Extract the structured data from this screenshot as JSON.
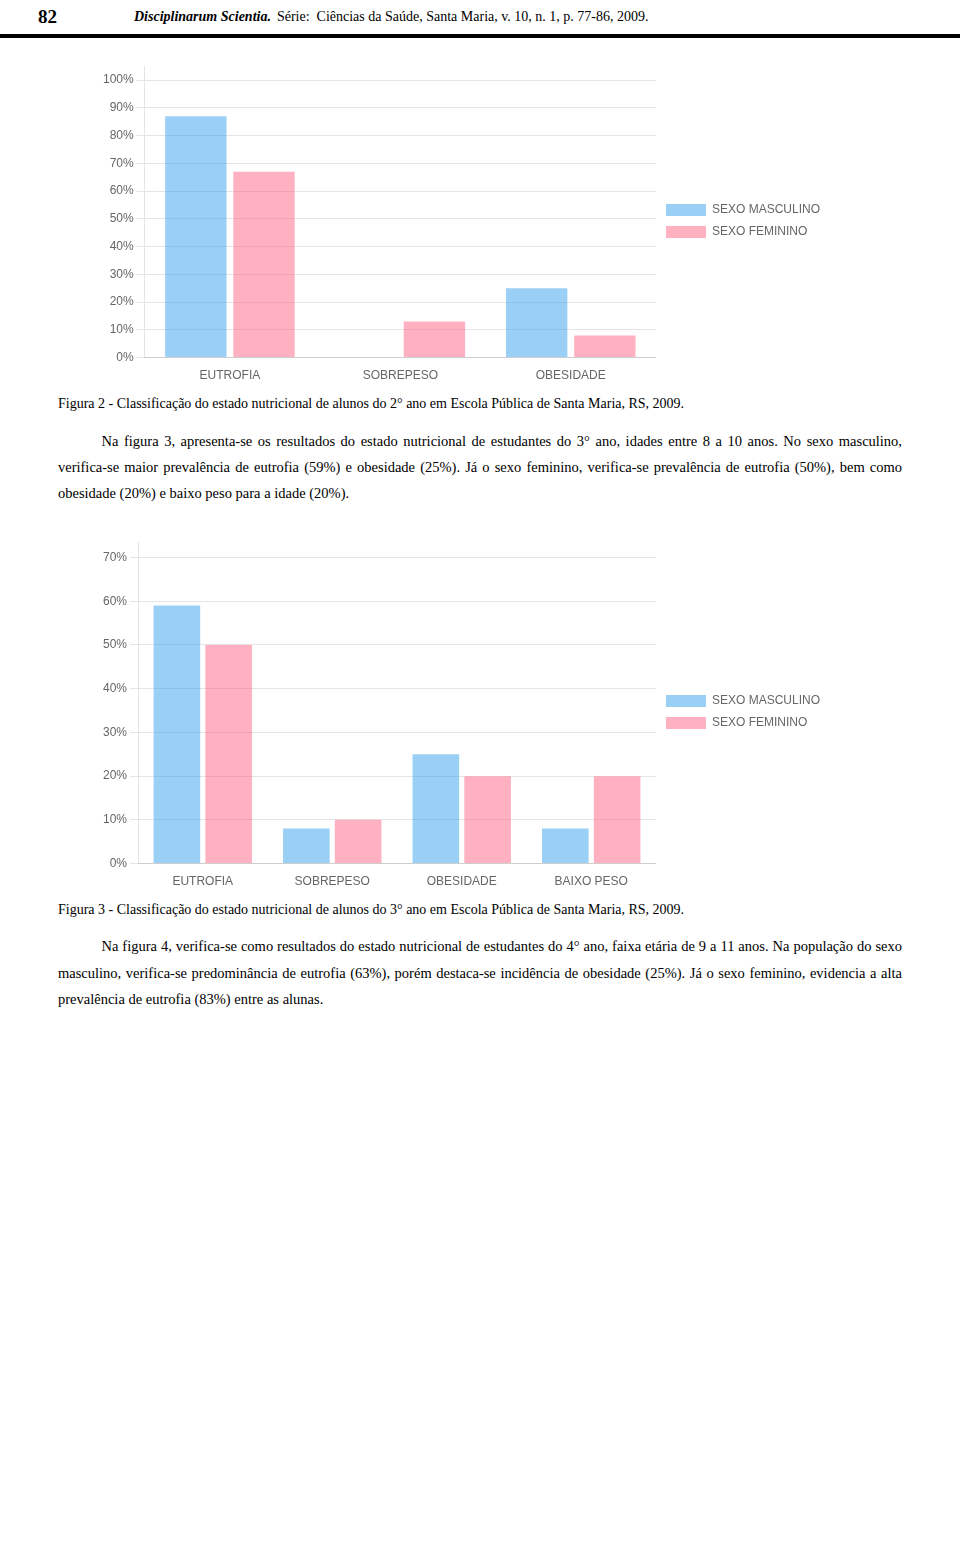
{
  "chart_data": [
    {
      "type": "bar",
      "title": "Figura 2 - Classificação do estado nutricional de alunos do 2° ano em Escola Pública de Santa Maria, RS, 2009.",
      "categories": [
        "EUTROFIA",
        "SOBREPESO",
        "OBESIDADE"
      ],
      "series": [
        {
          "name": "SEXO MASCULINO",
          "values": [
            0.87,
            0.0,
            0.25
          ]
        },
        {
          "name": "SEXO FEMININO",
          "values": [
            0.67,
            0.13,
            0.08
          ]
        }
      ],
      "ylim": [
        0,
        1.05
      ],
      "yticks": [
        {
          "value": 0.0,
          "label": "0%"
        },
        {
          "value": 0.1,
          "label": "10%"
        },
        {
          "value": 0.2,
          "label": "20%"
        },
        {
          "value": 0.3,
          "label": "30%"
        },
        {
          "value": 0.4,
          "label": "40%"
        },
        {
          "value": 0.5,
          "label": "50%"
        },
        {
          "value": 0.6,
          "label": "60%"
        },
        {
          "value": 0.7,
          "label": "70%"
        },
        {
          "value": 0.8,
          "label": "80%"
        },
        {
          "value": 0.9,
          "label": "90%"
        },
        {
          "value": 1.0,
          "label": "100%"
        }
      ],
      "grid": true,
      "legend": "right"
    },
    {
      "type": "bar",
      "title": "Figura 3 - Classificação do estado nutricional de alunos do 3° ano em Escola Pública de Santa Maria, RS, 2009.",
      "categories": [
        "EUTROFIA",
        "SOBREPESO",
        "OBESIDADE",
        "BAIXO PESO"
      ],
      "series": [
        {
          "name": "SEXO MASCULINO",
          "values": [
            0.59,
            0.08,
            0.25,
            0.08
          ]
        },
        {
          "name": "SEXO FEMININO",
          "values": [
            0.5,
            0.1,
            0.2,
            0.2
          ]
        }
      ],
      "ylim": [
        0,
        0.735
      ],
      "yticks": [
        {
          "value": 0.0,
          "label": "0%"
        },
        {
          "value": 0.1,
          "label": "10%"
        },
        {
          "value": 0.2,
          "label": "20%"
        },
        {
          "value": 0.3,
          "label": "30%"
        },
        {
          "value": 0.4,
          "label": "40%"
        },
        {
          "value": 0.5,
          "label": "50%"
        },
        {
          "value": 0.6,
          "label": "60%"
        },
        {
          "value": 0.7,
          "label": "70%"
        }
      ],
      "grid": true,
      "legend": "right"
    }
  ],
  "annotations": [
    "82",
    "Disciplinarum Scientia.",
    "Série:  Ciências da Saúde, Santa Maria, v. 10, n. 1, p. 77-86, 2009.",
    "Na figura 3, apresenta-se os resultados do estado nutricional de estudantes do 3° ano, idades entre 8 a 10 anos. No sexo masculino, verifica-se maior prevalência de eutrofia (59%) e obesidade (25%). Já o sexo feminino, verifica-se prevalência de eutrofia (50%), bem como obesidade (20%) e baixo peso para a idade (20%).",
    "Na figura 4, verifica-se como resultados do estado nutricional de estudantes do 4° ano, faixa etária de 9 a 11 anos. Na população do sexo masculino, verifica-se predominância de eutrofia (63%), porém destaca-se incidência de obesidade (25%). Já o sexo feminino, evidencia a alta prevalência de eutrofia (83%) entre as alunas."
  ]
}
